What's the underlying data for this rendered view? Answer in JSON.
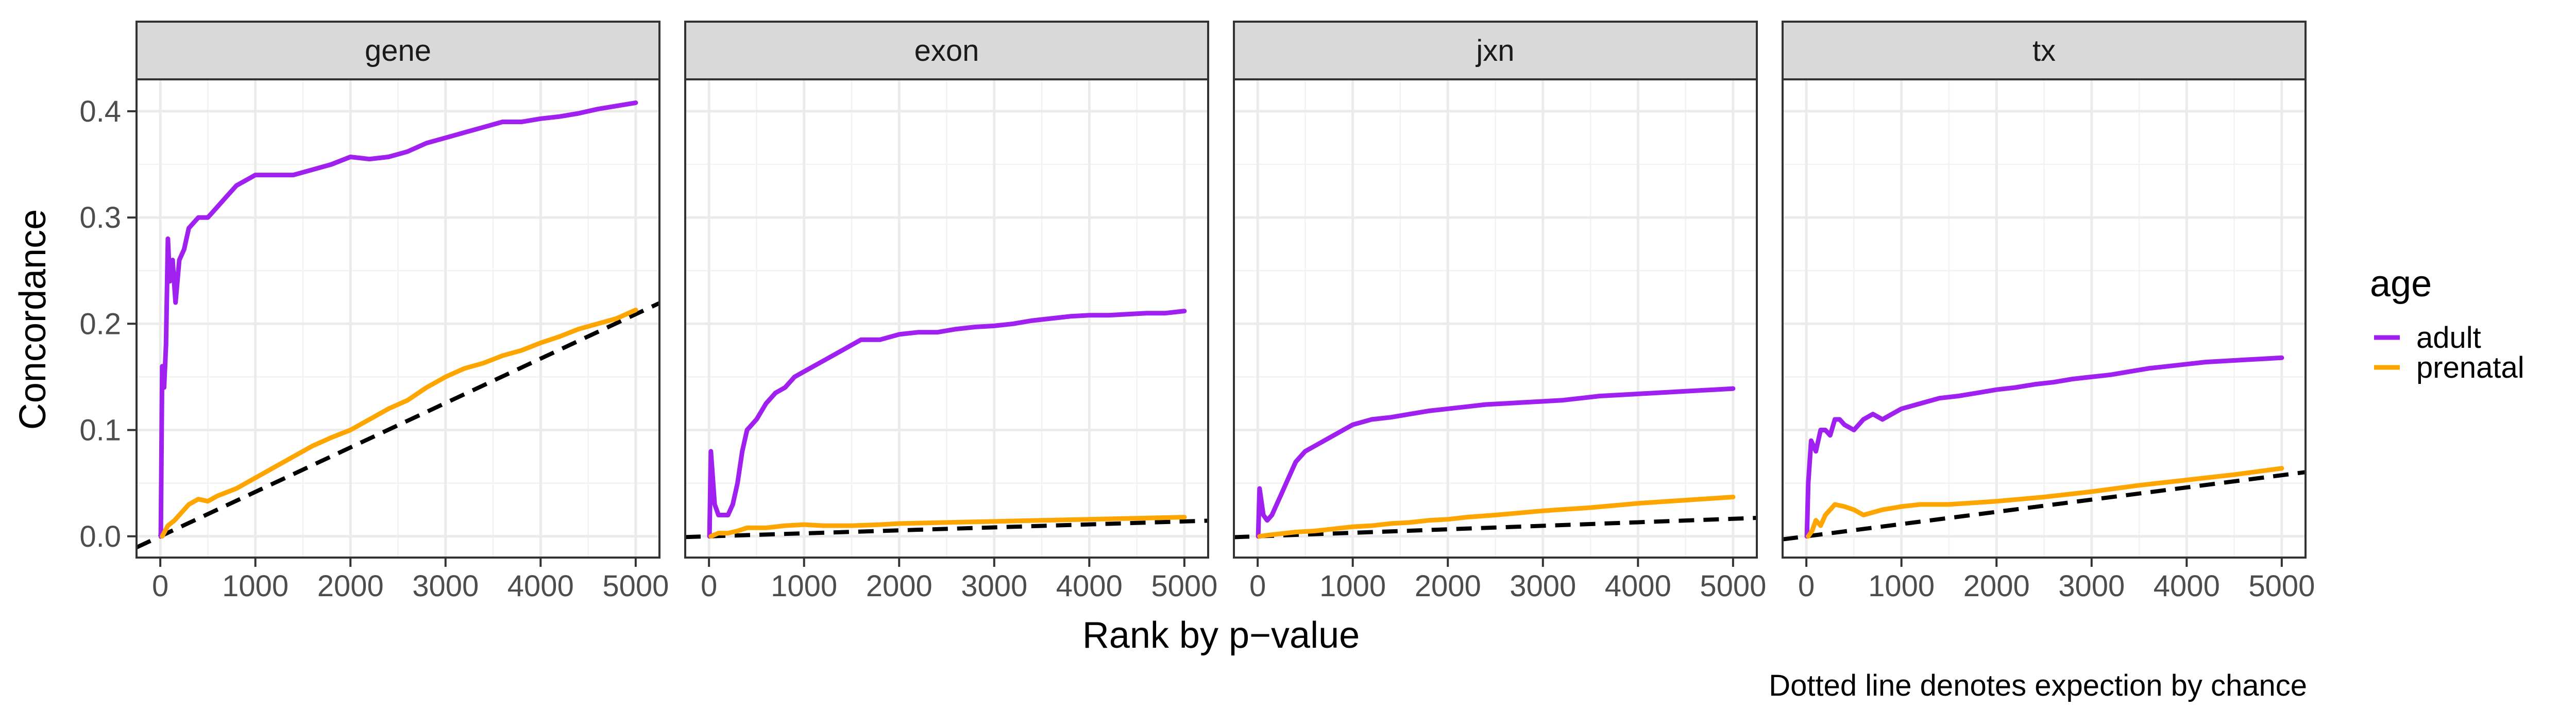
{
  "chart_data": {
    "type": "line",
    "ylabel": "Concordance",
    "xlabel": "Rank by p−value",
    "caption": "Dotted line denotes expection by chance",
    "legend": {
      "title": "age",
      "placement": "right",
      "entries": [
        {
          "label": "adult",
          "color": "#A020F0"
        },
        {
          "label": "prenatal",
          "color": "#FFA500"
        }
      ]
    },
    "xlim": [
      -250,
      5250
    ],
    "ylim": [
      -0.02,
      0.43
    ],
    "x_ticks": [
      0,
      1000,
      2000,
      3000,
      4000,
      5000
    ],
    "y_ticks": [
      0.0,
      0.1,
      0.2,
      0.3,
      0.4
    ],
    "y_tick_labels": [
      "0.0",
      "0.1",
      "0.2",
      "0.3",
      "0.4"
    ],
    "grid": true,
    "chance_line_color": "#000000",
    "panels": [
      {
        "name": "gene",
        "chance_slope": 4.18e-05,
        "series": [
          {
            "name": "adult",
            "x": [
              5,
              20,
              40,
              60,
              80,
              100,
              130,
              160,
              200,
              250,
              300,
              400,
              500,
              600,
              700,
              800,
              900,
              1000,
              1200,
              1400,
              1600,
              1800,
              2000,
              2200,
              2400,
              2600,
              2800,
              3000,
              3200,
              3400,
              3600,
              3800,
              4000,
              4200,
              4400,
              4600,
              4800,
              5000
            ],
            "y": [
              0.0,
              0.16,
              0.14,
              0.18,
              0.28,
              0.24,
              0.26,
              0.22,
              0.26,
              0.27,
              0.29,
              0.3,
              0.3,
              0.31,
              0.32,
              0.33,
              0.335,
              0.34,
              0.34,
              0.34,
              0.345,
              0.35,
              0.357,
              0.355,
              0.357,
              0.362,
              0.37,
              0.375,
              0.38,
              0.385,
              0.39,
              0.39,
              0.393,
              0.395,
              0.398,
              0.402,
              0.405,
              0.408
            ]
          },
          {
            "name": "prenatal",
            "x": [
              20,
              80,
              150,
              200,
              300,
              400,
              500,
              600,
              800,
              1000,
              1200,
              1400,
              1600,
              1800,
              2000,
              2200,
              2400,
              2600,
              2800,
              3000,
              3200,
              3400,
              3600,
              3800,
              4000,
              4200,
              4400,
              4600,
              4800,
              5000
            ],
            "y": [
              0.0,
              0.01,
              0.015,
              0.02,
              0.03,
              0.035,
              0.033,
              0.038,
              0.045,
              0.055,
              0.065,
              0.075,
              0.085,
              0.093,
              0.1,
              0.11,
              0.12,
              0.128,
              0.14,
              0.15,
              0.158,
              0.163,
              0.17,
              0.175,
              0.182,
              0.188,
              0.195,
              0.2,
              0.205,
              0.213
            ]
          }
        ]
      },
      {
        "name": "exon",
        "chance_slope": 2.8e-06,
        "series": [
          {
            "name": "adult",
            "x": [
              5,
              20,
              60,
              100,
              150,
              200,
              250,
              300,
              350,
              400,
              500,
              600,
              700,
              800,
              900,
              1000,
              1100,
              1200,
              1400,
              1600,
              1800,
              2000,
              2200,
              2400,
              2600,
              2800,
              3000,
              3200,
              3400,
              3600,
              3800,
              4000,
              4200,
              4400,
              4600,
              4800,
              5000
            ],
            "y": [
              0.0,
              0.08,
              0.03,
              0.02,
              0.02,
              0.02,
              0.03,
              0.05,
              0.08,
              0.1,
              0.11,
              0.125,
              0.135,
              0.14,
              0.15,
              0.155,
              0.16,
              0.165,
              0.175,
              0.185,
              0.185,
              0.19,
              0.192,
              0.192,
              0.195,
              0.197,
              0.198,
              0.2,
              0.203,
              0.205,
              0.207,
              0.208,
              0.208,
              0.209,
              0.21,
              0.21,
              0.212
            ]
          },
          {
            "name": "prenatal",
            "x": [
              20,
              100,
              200,
              300,
              400,
              600,
              800,
              1000,
              1200,
              1500,
              1800,
              2000,
              2500,
              3000,
              3500,
              4000,
              4500,
              5000
            ],
            "y": [
              0.0,
              0.003,
              0.003,
              0.005,
              0.008,
              0.008,
              0.01,
              0.011,
              0.01,
              0.01,
              0.011,
              0.012,
              0.013,
              0.014,
              0.015,
              0.016,
              0.017,
              0.018
            ]
          }
        ]
      },
      {
        "name": "jxn",
        "chance_slope": 3.3e-06,
        "series": [
          {
            "name": "adult",
            "x": [
              5,
              20,
              60,
              100,
              150,
              200,
              250,
              300,
              350,
              400,
              500,
              600,
              700,
              800,
              900,
              1000,
              1200,
              1400,
              1600,
              1800,
              2000,
              2200,
              2400,
              2600,
              2800,
              3000,
              3200,
              3400,
              3600,
              3800,
              4000,
              4200,
              4400,
              4600,
              4800,
              5000
            ],
            "y": [
              0.0,
              0.045,
              0.02,
              0.015,
              0.02,
              0.03,
              0.04,
              0.05,
              0.06,
              0.07,
              0.08,
              0.085,
              0.09,
              0.095,
              0.1,
              0.105,
              0.11,
              0.112,
              0.115,
              0.118,
              0.12,
              0.122,
              0.124,
              0.125,
              0.126,
              0.127,
              0.128,
              0.13,
              0.132,
              0.133,
              0.134,
              0.135,
              0.136,
              0.137,
              0.138,
              0.139
            ]
          },
          {
            "name": "prenatal",
            "x": [
              20,
              100,
              200,
              400,
              600,
              800,
              1000,
              1200,
              1400,
              1600,
              1800,
              2000,
              2200,
              2500,
              3000,
              3500,
              4000,
              4500,
              5000
            ],
            "y": [
              0.0,
              0.001,
              0.002,
              0.004,
              0.005,
              0.007,
              0.009,
              0.01,
              0.012,
              0.013,
              0.015,
              0.016,
              0.018,
              0.02,
              0.024,
              0.027,
              0.031,
              0.034,
              0.037
            ]
          }
        ]
      },
      {
        "name": "tx",
        "chance_slope": 1.15e-05,
        "series": [
          {
            "name": "adult",
            "x": [
              5,
              20,
              50,
              100,
              150,
              200,
              250,
              300,
              350,
              400,
              500,
              600,
              700,
              800,
              900,
              1000,
              1200,
              1400,
              1600,
              1800,
              2000,
              2200,
              2400,
              2600,
              2800,
              3000,
              3200,
              3400,
              3600,
              3800,
              4000,
              4200,
              4400,
              4600,
              4800,
              5000
            ],
            "y": [
              0.0,
              0.05,
              0.09,
              0.08,
              0.1,
              0.1,
              0.095,
              0.11,
              0.11,
              0.105,
              0.1,
              0.11,
              0.115,
              0.11,
              0.115,
              0.12,
              0.125,
              0.13,
              0.132,
              0.135,
              0.138,
              0.14,
              0.143,
              0.145,
              0.148,
              0.15,
              0.152,
              0.155,
              0.158,
              0.16,
              0.162,
              0.164,
              0.165,
              0.166,
              0.167,
              0.168
            ]
          },
          {
            "name": "prenatal",
            "x": [
              20,
              60,
              100,
              150,
              200,
              250,
              300,
              400,
              500,
              600,
              800,
              1000,
              1200,
              1500,
              2000,
              2500,
              3000,
              3500,
              4000,
              4500,
              5000
            ],
            "y": [
              0.0,
              0.005,
              0.015,
              0.01,
              0.02,
              0.025,
              0.03,
              0.028,
              0.025,
              0.02,
              0.025,
              0.028,
              0.03,
              0.03,
              0.033,
              0.037,
              0.042,
              0.048,
              0.053,
              0.058,
              0.064
            ]
          }
        ]
      }
    ]
  }
}
